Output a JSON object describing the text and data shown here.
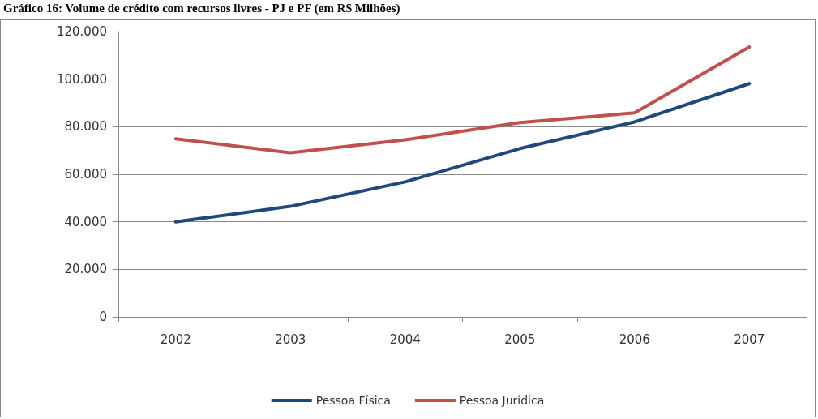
{
  "chart_data": {
    "type": "line",
    "title": "Gráfico 16: Volume de crédito com recursos livres - PJ e PF (em R$ Milhões)",
    "categories": [
      "2002",
      "2003",
      "2004",
      "2005",
      "2006",
      "2007"
    ],
    "series": [
      {
        "name": "Pessoa Física",
        "color": "#1f497d",
        "values": [
          40000,
          46500,
          56800,
          70800,
          82000,
          98100
        ]
      },
      {
        "name": "Pessoa Jurídica",
        "color": "#c0504d",
        "values": [
          74900,
          69000,
          74500,
          81700,
          85800,
          113500
        ]
      }
    ],
    "ylim": [
      0,
      120000
    ],
    "yticks": [
      0,
      {
        "value": 20000,
        "label": "20.000"
      },
      {
        "value": 40000,
        "label": "40.000"
      },
      {
        "value": 60000,
        "label": "60.000"
      },
      {
        "value": 80000,
        "label": "80.000"
      },
      {
        "value": 100000,
        "label": "100.000"
      },
      {
        "value": 120000,
        "label": "120.000"
      }
    ],
    "grid": "y",
    "legend": "bottom",
    "marker": "none",
    "line_style": "solid"
  }
}
